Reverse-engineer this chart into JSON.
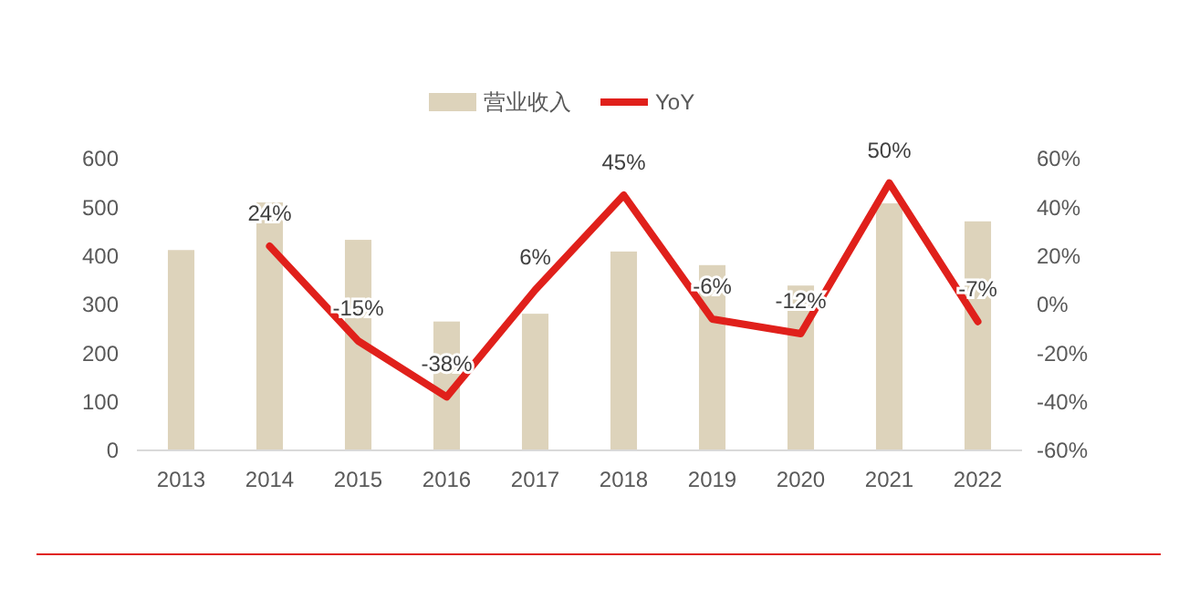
{
  "chart_data": {
    "type": "bar",
    "categories": [
      "2013",
      "2014",
      "2015",
      "2016",
      "2017",
      "2018",
      "2019",
      "2020",
      "2021",
      "2022"
    ],
    "series": [
      {
        "name": "营业收入",
        "color": "#ddd3bb",
        "values": [
          412,
          510,
          433,
          265,
          281,
          409,
          381,
          339,
          508,
          471
        ]
      },
      {
        "name": "YoY",
        "type": "line",
        "axis": "y2",
        "color": "#e0201b",
        "values": [
          null,
          24,
          -15,
          -38,
          6,
          45,
          -6,
          -12,
          50,
          -7
        ],
        "value_labels": [
          null,
          "24%",
          "-15%",
          "-38%",
          "6%",
          "45%",
          "-6%",
          "-12%",
          "50%",
          "-7%"
        ]
      }
    ],
    "ylim": [
      0,
      600
    ],
    "yticks": [
      0,
      100,
      200,
      300,
      400,
      500,
      600
    ],
    "y2lim": [
      -60,
      60
    ],
    "y2ticks": [
      {
        "value": -60,
        "label": "-60%"
      },
      {
        "value": -40,
        "label": "-40%"
      },
      {
        "value": -20,
        "label": "-20%"
      },
      {
        "value": 0,
        "label": "0%"
      },
      {
        "value": 20,
        "label": "20%"
      },
      {
        "value": 40,
        "label": "40%"
      },
      {
        "value": 60,
        "label": "60%"
      }
    ],
    "legend": "top",
    "grid": false,
    "marker": "none",
    "line_style": "solid"
  }
}
